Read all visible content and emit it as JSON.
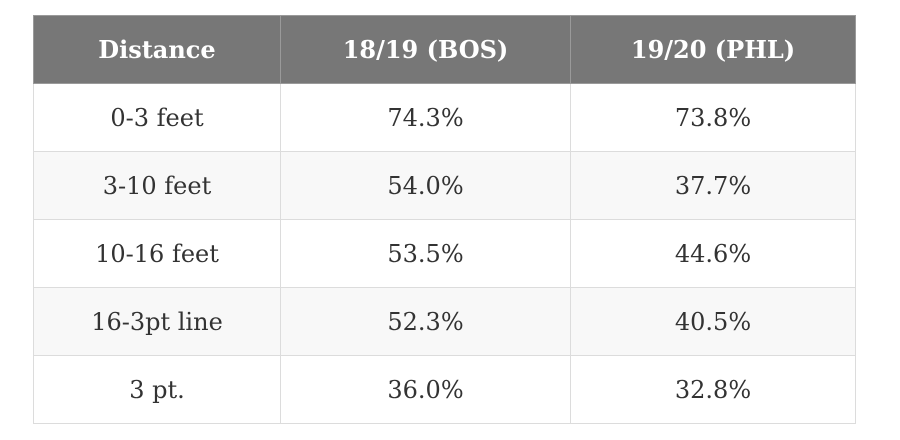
{
  "table": {
    "header": [
      "Distance",
      "18/19 (BOS)",
      "19/20 (PHL)"
    ],
    "rows": [
      [
        "0-3 feet",
        "74.3%",
        "73.8%"
      ],
      [
        "3-10 feet",
        "54.0%",
        "37.7%"
      ],
      [
        "10-16 feet",
        "53.5%",
        "44.6%"
      ],
      [
        "16-3pt line",
        "52.3%",
        "40.5%"
      ],
      [
        "3 pt.",
        "36.0%",
        "32.8%"
      ]
    ]
  }
}
